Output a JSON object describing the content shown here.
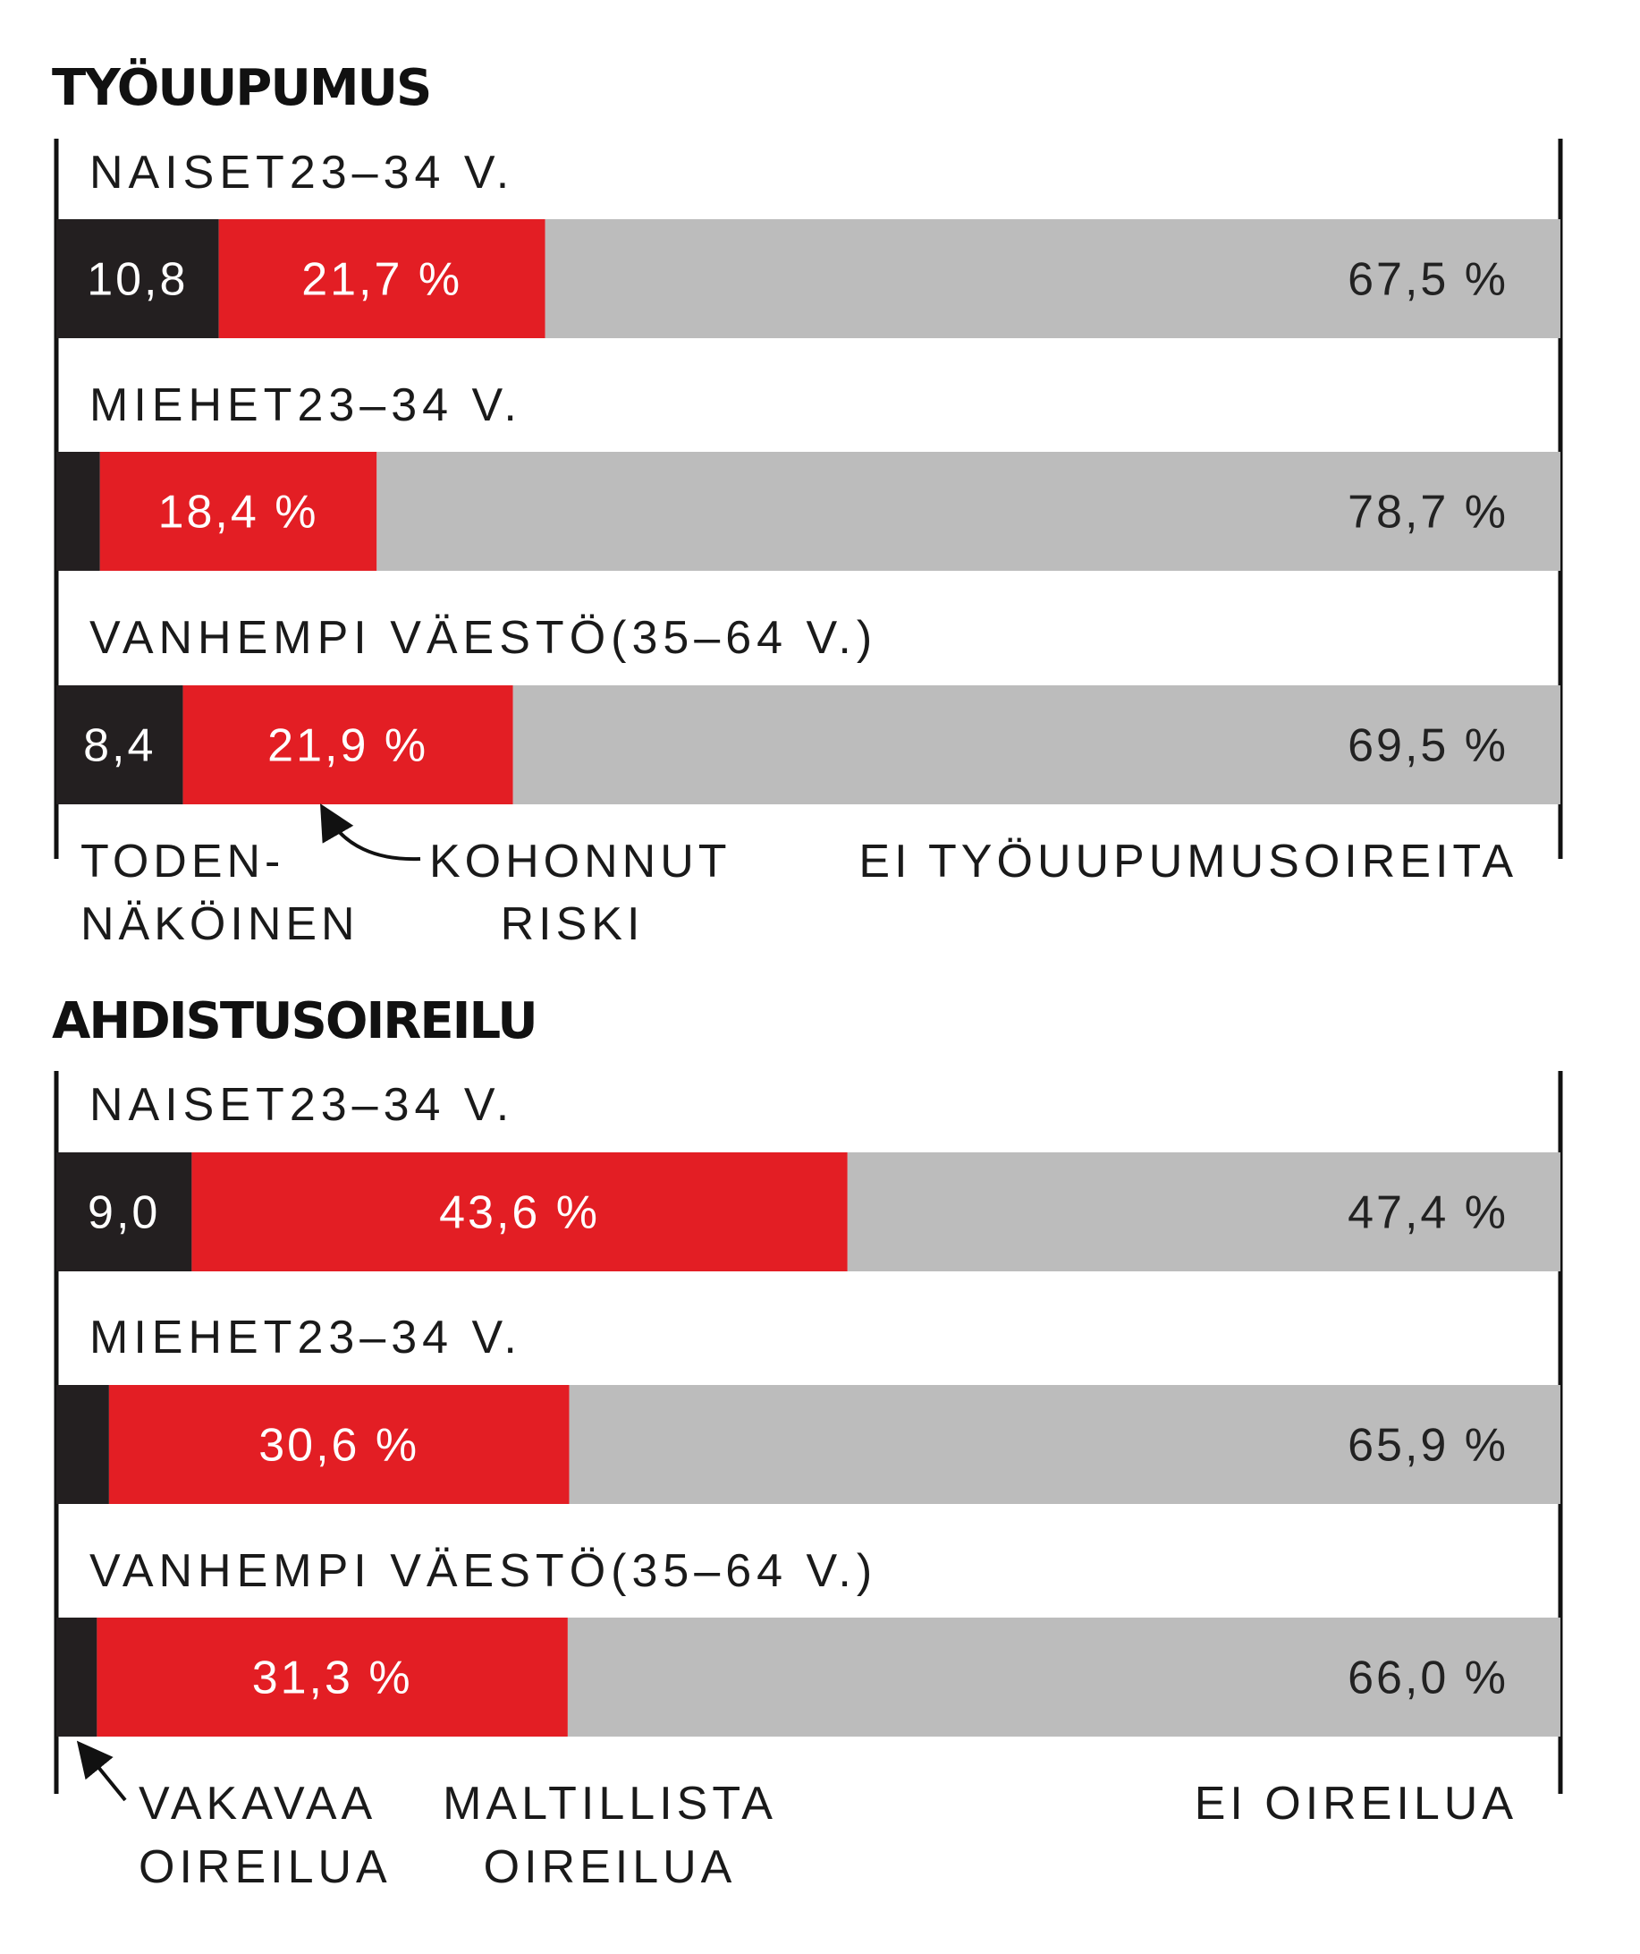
{
  "chart_data": [
    {
      "type": "bar",
      "stacked": true,
      "orientation": "horizontal",
      "title": "TYÖUUPUMUS",
      "unit": "%",
      "xlim": [
        0,
        100
      ],
      "categories": [
        "NAISET23–34 V.",
        "MIEHET23–34 V.",
        "VANHEMPI VÄESTÖ(35–64 V.)"
      ],
      "series": [
        {
          "name": "TODEN-NÄKÖINEN",
          "color": "#231f20",
          "values": [
            10.8,
            2.9,
            8.4
          ],
          "labels": [
            "10,8",
            "",
            "8,4"
          ]
        },
        {
          "name": "KOHONNUT RISKI",
          "color": "#e31e24",
          "values": [
            21.7,
            18.4,
            21.9
          ],
          "labels": [
            "21,7 %",
            "18,4 %",
            "21,9 %"
          ]
        },
        {
          "name": "EI TYÖUUPUMUSOIREITA",
          "color": "#bcbcbc",
          "values": [
            67.5,
            78.7,
            69.5
          ],
          "labels": [
            "67,5 %",
            "78,7 %",
            "69,5 %"
          ]
        }
      ],
      "legend": [
        {
          "lines": [
            "TODEN-",
            "NÄKÖINEN"
          ]
        },
        {
          "lines": [
            "KOHONNUT",
            "RISKI"
          ],
          "arrow": "curved-arrow-icon"
        },
        {
          "lines": [
            "EI TYÖUUPUMUSOIREITA"
          ]
        }
      ]
    },
    {
      "type": "bar",
      "stacked": true,
      "orientation": "horizontal",
      "title": "AHDISTUSOIREILU",
      "unit": "%",
      "xlim": [
        0,
        100
      ],
      "categories": [
        "NAISET23–34 V.",
        "MIEHET23–34 V.",
        "VANHEMPI VÄESTÖ(35–64 V.)"
      ],
      "series": [
        {
          "name": "VAKAVAA OIREILUA",
          "color": "#231f20",
          "values": [
            9.0,
            3.5,
            2.7
          ],
          "labels": [
            "9,0",
            "",
            ""
          ]
        },
        {
          "name": "MALTILLISTA OIREILUA",
          "color": "#e31e24",
          "values": [
            43.6,
            30.6,
            31.3
          ],
          "labels": [
            "43,6 %",
            "30,6 %",
            "31,3 %"
          ]
        },
        {
          "name": "EI OIREILUA",
          "color": "#bcbcbc",
          "values": [
            47.4,
            65.9,
            66.0
          ],
          "labels": [
            "47,4 %",
            "65,9 %",
            "66,0 %"
          ]
        }
      ],
      "legend": [
        {
          "lines": [
            "VAKAVAA",
            "OIREILUA"
          ],
          "arrow": "straight-arrow-icon"
        },
        {
          "lines": [
            "MALTILLISTA",
            "OIREILUA"
          ]
        },
        {
          "lines": [
            "EI OIREILUA"
          ]
        }
      ]
    }
  ]
}
